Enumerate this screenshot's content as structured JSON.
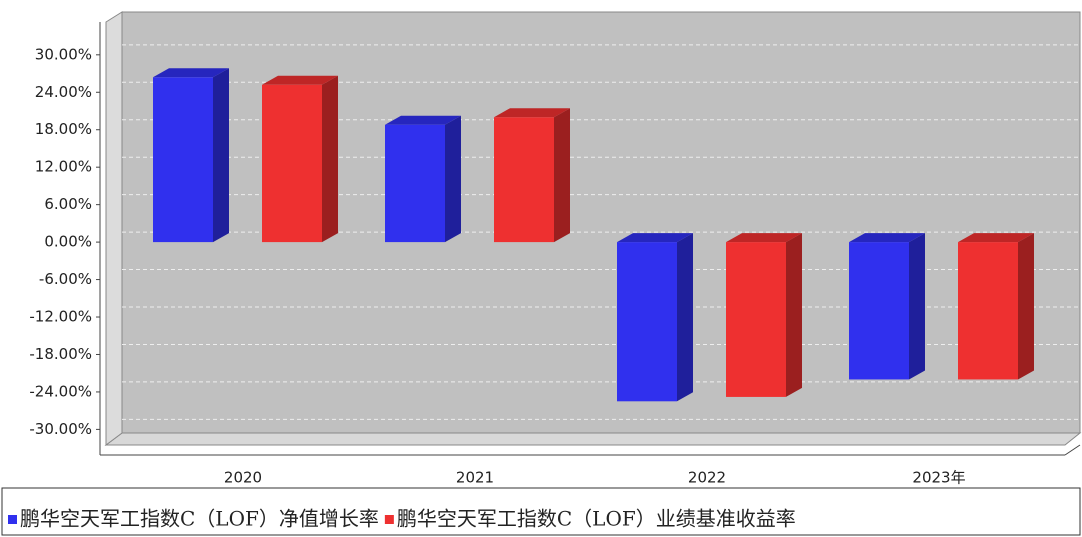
{
  "chart_data": {
    "type": "bar3d",
    "categories": [
      "2020",
      "2021",
      "2022",
      "2023年"
    ],
    "series": [
      {
        "name": "鹏华空天军工指数C（LOF）净值增长率",
        "color": "#3030ee",
        "values": [
          26.4,
          18.8,
          -25.5,
          -22.0
        ]
      },
      {
        "name": "鹏华空天军工指数C（LOF）业绩基准收益率",
        "color": "#ee3030",
        "values": [
          25.2,
          20.0,
          -24.8,
          -22.0
        ]
      }
    ],
    "ylim": [
      -32.5,
      35
    ],
    "yticks": [
      {
        "value": 30,
        "label": "30.00%"
      },
      {
        "value": 24,
        "label": "24.00%"
      },
      {
        "value": 18,
        "label": "18.00%"
      },
      {
        "value": 12,
        "label": "12.00%"
      },
      {
        "value": 6,
        "label": "6.00%"
      },
      {
        "value": 0,
        "label": "0.00%"
      },
      {
        "value": -6,
        "label": "-6.00%"
      },
      {
        "value": -12,
        "label": "-12.00%"
      },
      {
        "value": -18,
        "label": "-18.00%"
      },
      {
        "value": -24,
        "label": "-24.00%"
      },
      {
        "value": -30,
        "label": "-30.00%"
      }
    ],
    "grid": true,
    "legend": "bottom"
  }
}
